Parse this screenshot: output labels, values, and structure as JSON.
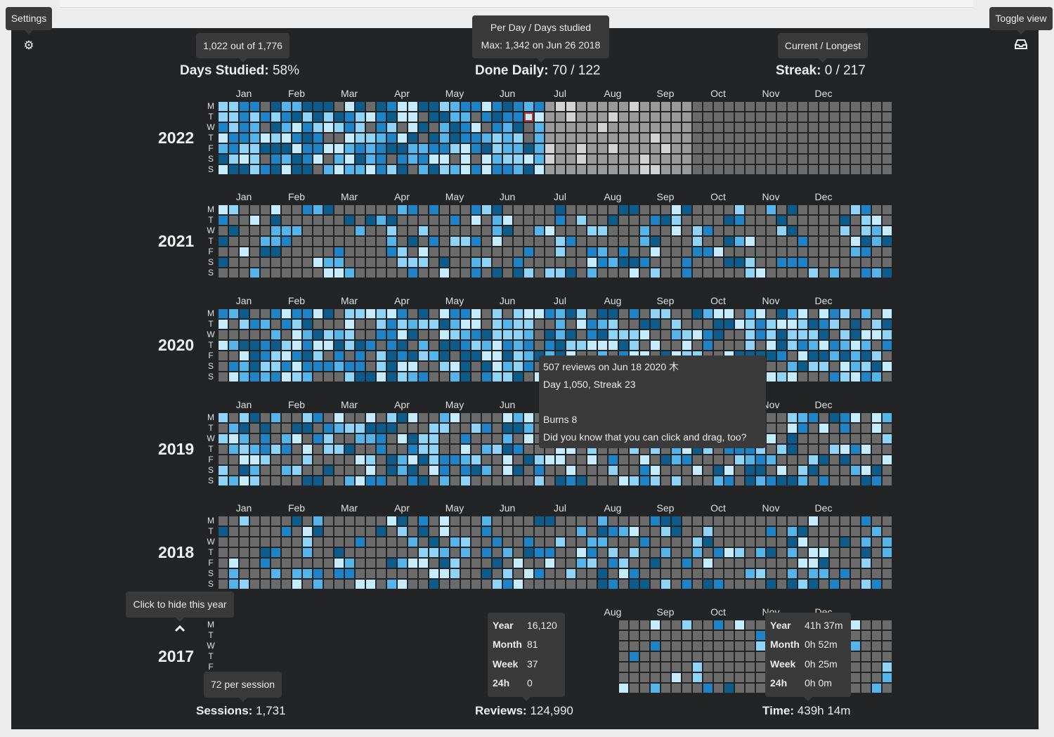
{
  "toolbar": {
    "settings_tip": "Settings",
    "toggle_tip": "Toggle view",
    "settings_icon": "gear-icon",
    "toggle_icon": "inbox-tray-icon"
  },
  "header": {
    "days_studied": {
      "tip": "1,022 out of 1,776",
      "label": "Days Studied:",
      "value": "58%"
    },
    "done_daily": {
      "tip_line1": "Per Day / Days studied",
      "tip_line2": "Max: 1,342 on Jun 26 2018",
      "label": "Done Daily:",
      "value": "70 / 122"
    },
    "streak": {
      "tip": "Current / Longest",
      "label": "Streak:",
      "value": "0 / 217"
    }
  },
  "calendar": {
    "day_letters": [
      "M",
      "T",
      "W",
      "T",
      "F",
      "S",
      "S"
    ],
    "months": [
      "Jan",
      "Feb",
      "Mar",
      "Apr",
      "May",
      "Jun",
      "Jul",
      "Aug",
      "Sep",
      "Oct",
      "Nov",
      "Dec"
    ],
    "years": [
      {
        "year": "2022",
        "level": 5
      },
      {
        "year": "2021",
        "level": 2
      },
      {
        "year": "2020",
        "level": 4
      },
      {
        "year": "2019",
        "level": 3
      },
      {
        "year": "2018",
        "level": 2
      },
      {
        "year": "2017",
        "level": 1
      }
    ],
    "colors": {
      "empty": "#6b6b6b",
      "l1": "#0d5c8c",
      "l2": "#1f84c7",
      "l3": "#55b4ea",
      "l4": "#8fd3f6",
      "l5": "#c4ecfc",
      "future_dim": "#9a9a9a",
      "future_light": "#d2d2d2",
      "white": "#ffffff",
      "today_border": "#cc3333"
    },
    "hide_year_tip": "Click to hide this year",
    "collapse_icon": "chevron-up-icon"
  },
  "hover_tip": {
    "line1": "507 reviews on Jun 18 2020 木",
    "line2": "Day 1,050, Streak 23",
    "line3": "Burns 8",
    "line4": "Did you know that you can click and drag, too?"
  },
  "footer": {
    "sessions": {
      "tip": "72 per session",
      "label": "Sessions:",
      "value": "1,731"
    },
    "reviews": {
      "label": "Reviews:",
      "value": "124,990",
      "rows": [
        {
          "k": "Year",
          "v": "16,120"
        },
        {
          "k": "Month",
          "v": "81"
        },
        {
          "k": "Week",
          "v": "37"
        },
        {
          "k": "24h",
          "v": "0"
        }
      ]
    },
    "time": {
      "label": "Time:",
      "value": "439h 14m",
      "rows": [
        {
          "k": "Year",
          "v": "41h 37m"
        },
        {
          "k": "Month",
          "v": "0h 52m"
        },
        {
          "k": "Week",
          "v": "0h 25m"
        },
        {
          "k": "24h",
          "v": "0h 0m"
        }
      ]
    }
  }
}
